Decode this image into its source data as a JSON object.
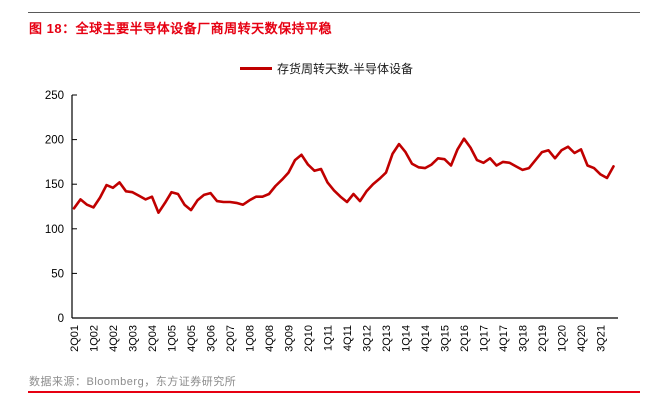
{
  "page": {
    "title": "图 18：全球主要半导体设备厂商周转天数保持平稳",
    "source": "数据来源：Bloomberg，东方证券研究所",
    "colors": {
      "title_red": "#e60012",
      "line_red": "#c00000",
      "top_rule_gray": "#595959",
      "bottom_rule_red": "#e60012",
      "source_gray": "#8c8c8c",
      "axis_black": "#000000"
    }
  },
  "chart_data": {
    "type": "line",
    "title": "",
    "xlabel": "",
    "ylabel": "",
    "ylim": [
      0,
      250
    ],
    "yticks": [
      0,
      50,
      100,
      150,
      200,
      250
    ],
    "grid": false,
    "legend_position": "top-center",
    "x_tick_labels": [
      "2Q01",
      "1Q02",
      "4Q02",
      "3Q03",
      "2Q04",
      "1Q05",
      "4Q05",
      "3Q06",
      "2Q07",
      "1Q08",
      "4Q08",
      "3Q09",
      "2Q10",
      "1Q11",
      "4Q11",
      "3Q12",
      "2Q13",
      "1Q14",
      "4Q14",
      "3Q15",
      "2Q16",
      "1Q17",
      "4Q17",
      "3Q18",
      "2Q19",
      "1Q20",
      "4Q20",
      "3Q21"
    ],
    "x_tick_every": 3,
    "series": [
      {
        "name": "存货周转天数-半导体设备",
        "color": "#c00000",
        "values": [
          123,
          133,
          127,
          124,
          135,
          149,
          146,
          152,
          142,
          141,
          137,
          133,
          136,
          118,
          129,
          141,
          139,
          127,
          121,
          132,
          138,
          140,
          131,
          130,
          130,
          129,
          127,
          132,
          136,
          136,
          139,
          148,
          155,
          163,
          177,
          183,
          172,
          165,
          167,
          152,
          143,
          136,
          130,
          139,
          131,
          142,
          150,
          156,
          163,
          184,
          195,
          186,
          173,
          169,
          168,
          172,
          179,
          178,
          171,
          189,
          201,
          191,
          177,
          174,
          179,
          171,
          175,
          174,
          170,
          166,
          168,
          177,
          186,
          188,
          179,
          188,
          192,
          185,
          189,
          171,
          168,
          161,
          157,
          170
        ]
      }
    ]
  }
}
